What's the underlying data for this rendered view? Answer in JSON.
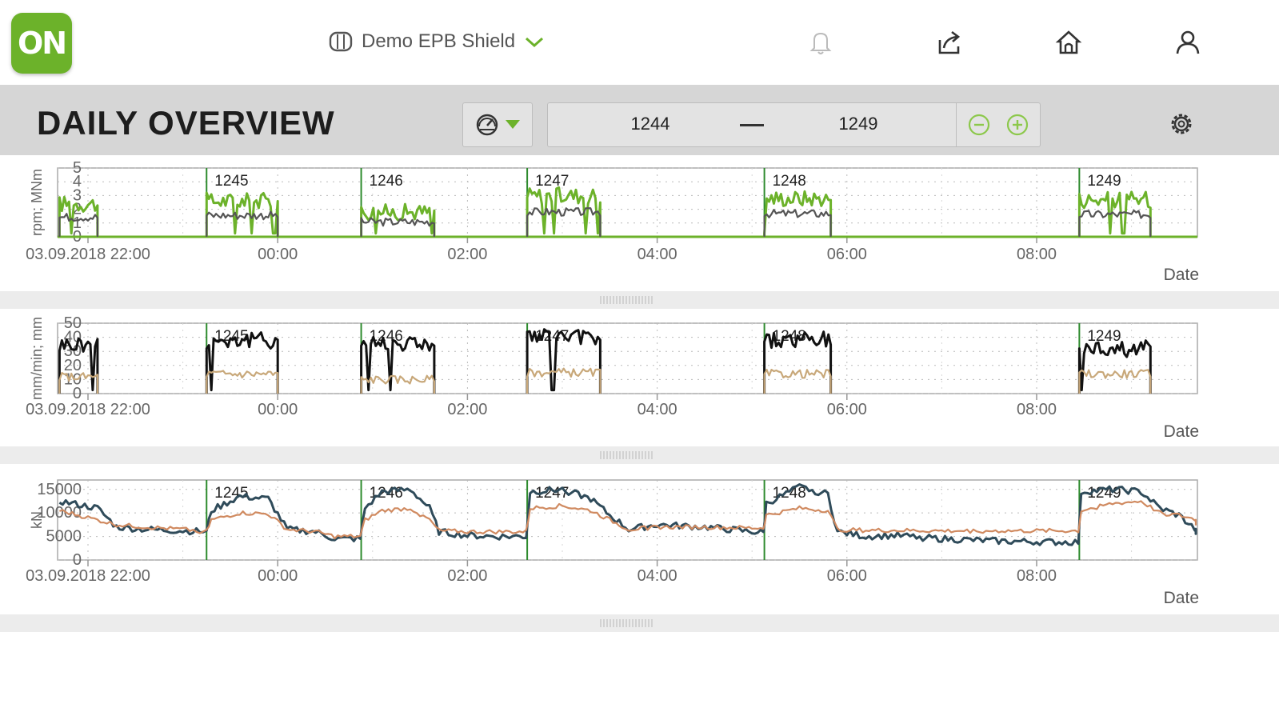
{
  "app": {
    "logo_text": "ON"
  },
  "header": {
    "project_name": "Demo EPB Shield",
    "icons": [
      "project-icon",
      "chevron-down-icon",
      "bell-icon",
      "share-icon",
      "home-icon",
      "user-icon"
    ]
  },
  "toolbar": {
    "title": "DAILY OVERVIEW",
    "ring_from": "1244",
    "ring_to": "1249",
    "icons": [
      "gauge-icon",
      "caret-down-icon",
      "zoom-out-icon",
      "zoom-in-icon",
      "settings-icon"
    ]
  },
  "colors": {
    "accent_green": "#6cb22a",
    "series_black": "#111111",
    "series_tan": "#c8a87a",
    "series_blue": "#2f4b5a",
    "series_orange": "#d08a60",
    "grid": "#bbbbbb",
    "marker_line": "#2e8b2e"
  },
  "chart_data": [
    {
      "type": "line",
      "ylabel": "rpm; MNm",
      "xlabel": "Date",
      "ylim": [
        0,
        5
      ],
      "yticks": [
        "0",
        "1",
        "2",
        "3",
        "4",
        "5"
      ],
      "x_ticks": [
        "03.09.2018 22:00",
        "00:00",
        "02:00",
        "04:00",
        "06:00",
        "08:00"
      ],
      "x_range_hours": [
        -2.0,
        9.9
      ],
      "grid": true,
      "ring_markers": [
        {
          "label": "1245",
          "t": -0.75
        },
        {
          "label": "1246",
          "t": 0.88
        },
        {
          "label": "1247",
          "t": 2.63
        },
        {
          "label": "1248",
          "t": 5.13
        },
        {
          "label": "1249",
          "t": 8.45
        }
      ],
      "segments": [
        {
          "from": -2.3,
          "to": -1.9,
          "level": 2.4
        },
        {
          "from": -0.75,
          "to": 0.0,
          "level": 2.6
        },
        {
          "from": 0.88,
          "to": 1.65,
          "level": 1.8
        },
        {
          "from": 2.63,
          "to": 3.4,
          "level": 3.0
        },
        {
          "from": 5.13,
          "to": 5.83,
          "level": 2.8
        },
        {
          "from": 8.45,
          "to": 9.2,
          "level": 2.7
        }
      ],
      "series": [
        {
          "color": "#6cb22a"
        },
        {
          "color": "#555555"
        }
      ]
    },
    {
      "type": "line",
      "ylabel": "mm/min; mm",
      "xlabel": "Date",
      "ylim": [
        0,
        50
      ],
      "yticks": [
        "0",
        "10",
        "20",
        "30",
        "40",
        "50"
      ],
      "x_ticks": [
        "03.09.2018 22:00",
        "00:00",
        "02:00",
        "04:00",
        "06:00",
        "08:00"
      ],
      "x_range_hours": [
        -2.0,
        9.9
      ],
      "grid": true,
      "ring_markers": [
        {
          "label": "1245",
          "t": -0.75
        },
        {
          "label": "1246",
          "t": 0.88
        },
        {
          "label": "1247",
          "t": 2.63
        },
        {
          "label": "1248",
          "t": 5.13
        },
        {
          "label": "1249",
          "t": 8.45
        }
      ],
      "segments": [
        {
          "from": -2.3,
          "to": -1.9,
          "level": 35,
          "level2": 12
        },
        {
          "from": -0.75,
          "to": 0.0,
          "level": 38,
          "level2": 14
        },
        {
          "from": 0.88,
          "to": 1.65,
          "level": 36,
          "level2": 10
        },
        {
          "from": 2.63,
          "to": 3.4,
          "level": 40,
          "level2": 15
        },
        {
          "from": 5.13,
          "to": 5.83,
          "level": 38,
          "level2": 14
        },
        {
          "from": 8.45,
          "to": 9.2,
          "level": 32,
          "level2": 14
        }
      ],
      "series": [
        {
          "color": "#111111"
        },
        {
          "color": "#c8a87a"
        }
      ]
    },
    {
      "type": "line",
      "ylabel": "kN",
      "xlabel": "Date",
      "ylim": [
        0,
        17000
      ],
      "yticks": [
        "0",
        "5000",
        "10000",
        "15000"
      ],
      "x_ticks": [
        "03.09.2018 22:00",
        "00:00",
        "02:00",
        "04:00",
        "06:00",
        "08:00"
      ],
      "x_range_hours": [
        -2.0,
        9.9
      ],
      "grid": true,
      "ring_markers": [
        {
          "label": "1245",
          "t": -0.75
        },
        {
          "label": "1246",
          "t": 0.88
        },
        {
          "label": "1247",
          "t": 2.63
        },
        {
          "label": "1248",
          "t": 5.13
        },
        {
          "label": "1249",
          "t": 8.45
        }
      ],
      "series": [
        {
          "color": "#2f4b5a",
          "points": [
            [
              -2.3,
              12500
            ],
            [
              -1.9,
              11000
            ],
            [
              -1.7,
              7000
            ],
            [
              -1.4,
              6500
            ],
            [
              -1.0,
              6200
            ],
            [
              -0.75,
              6000
            ],
            [
              -0.7,
              10500
            ],
            [
              -0.4,
              13500
            ],
            [
              -0.1,
              13000
            ],
            [
              0.1,
              6500
            ],
            [
              0.4,
              6000
            ],
            [
              0.6,
              4500
            ],
            [
              0.87,
              4500
            ],
            [
              0.92,
              11000
            ],
            [
              1.1,
              14500
            ],
            [
              1.4,
              15000
            ],
            [
              1.6,
              11000
            ],
            [
              1.7,
              6000
            ],
            [
              2.0,
              5200
            ],
            [
              2.3,
              5000
            ],
            [
              2.62,
              5000
            ],
            [
              2.66,
              14500
            ],
            [
              3.0,
              15000
            ],
            [
              3.3,
              13000
            ],
            [
              3.5,
              9500
            ],
            [
              3.7,
              6500
            ],
            [
              4.0,
              7500
            ],
            [
              4.5,
              7000
            ],
            [
              5.0,
              6000
            ],
            [
              5.12,
              5800
            ],
            [
              5.15,
              12000
            ],
            [
              5.5,
              15500
            ],
            [
              5.8,
              14000
            ],
            [
              5.9,
              6000
            ],
            [
              6.2,
              5000
            ],
            [
              6.5,
              5200
            ],
            [
              7.0,
              4500
            ],
            [
              7.6,
              4000
            ],
            [
              8.2,
              3800
            ],
            [
              8.44,
              3800
            ],
            [
              8.47,
              14500
            ],
            [
              8.8,
              15000
            ],
            [
              9.1,
              14500
            ],
            [
              9.3,
              11000
            ],
            [
              9.5,
              9500
            ],
            [
              9.7,
              6000
            ],
            [
              9.9,
              5800
            ]
          ]
        },
        {
          "color": "#d08a60",
          "points": [
            [
              -2.3,
              10500
            ],
            [
              -1.9,
              8500
            ],
            [
              -1.7,
              7500
            ],
            [
              -1.4,
              7000
            ],
            [
              -1.0,
              6500
            ],
            [
              -0.75,
              6000
            ],
            [
              -0.7,
              8500
            ],
            [
              -0.4,
              10000
            ],
            [
              -0.1,
              9800
            ],
            [
              0.1,
              6500
            ],
            [
              0.4,
              6000
            ],
            [
              0.6,
              5000
            ],
            [
              0.87,
              5000
            ],
            [
              0.92,
              8500
            ],
            [
              1.1,
              10500
            ],
            [
              1.4,
              11000
            ],
            [
              1.6,
              8500
            ],
            [
              1.7,
              6200
            ],
            [
              2.0,
              6000
            ],
            [
              2.3,
              6000
            ],
            [
              2.62,
              6000
            ],
            [
              2.66,
              11000
            ],
            [
              3.0,
              11500
            ],
            [
              3.3,
              10500
            ],
            [
              3.5,
              8500
            ],
            [
              3.7,
              6500
            ],
            [
              4.0,
              7000
            ],
            [
              4.5,
              7000
            ],
            [
              5.0,
              6800
            ],
            [
              5.12,
              6800
            ],
            [
              5.15,
              9500
            ],
            [
              5.5,
              11000
            ],
            [
              5.8,
              10500
            ],
            [
              5.9,
              6500
            ],
            [
              6.2,
              6300
            ],
            [
              6.5,
              6300
            ],
            [
              7.0,
              6200
            ],
            [
              7.6,
              6200
            ],
            [
              8.2,
              6200
            ],
            [
              8.44,
              6200
            ],
            [
              8.47,
              10500
            ],
            [
              8.8,
              12000
            ],
            [
              9.1,
              12500
            ],
            [
              9.3,
              10000
            ],
            [
              9.5,
              9500
            ],
            [
              9.7,
              8500
            ],
            [
              9.9,
              7500
            ]
          ]
        }
      ]
    }
  ]
}
